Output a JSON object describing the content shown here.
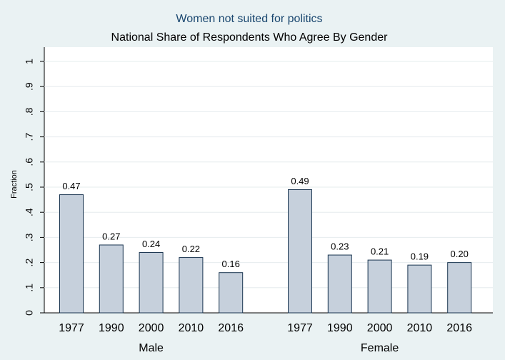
{
  "chart_data": {
    "type": "bar",
    "title": "Women not suited for politics",
    "subtitle": "National Share of Respondents Who Agree By Gender",
    "ylabel": "Fraction",
    "color": "#c6d0dc",
    "edgecolor": "#1a3550",
    "grid": true,
    "ylim": [
      0,
      1
    ],
    "yticks": [
      0,
      {
        "value": 0.1,
        "label": ".1"
      },
      {
        "value": 0.2,
        "label": ".2"
      },
      {
        "value": 0.3,
        "label": ".3"
      },
      {
        "value": 0.4,
        "label": ".4"
      },
      {
        "value": 0.5,
        "label": ".5"
      },
      {
        "value": 0.6,
        "label": ".6"
      },
      {
        "value": 0.7,
        "label": ".7"
      },
      {
        "value": 0.8,
        "label": ".8"
      },
      {
        "value": 0.9,
        "label": ".9"
      },
      1
    ],
    "groups": [
      {
        "name": "Male",
        "categories": [
          "1977",
          "1990",
          "2000",
          "2010",
          "2016"
        ],
        "values": [
          0.47,
          0.27,
          0.24,
          0.22,
          0.16
        ],
        "value_labels": [
          "0.47",
          "0.27",
          "0.24",
          "0.22",
          "0.16"
        ]
      },
      {
        "name": "Female",
        "categories": [
          "1977",
          "1990",
          "2000",
          "2010",
          "2016"
        ],
        "values": [
          0.49,
          0.23,
          0.21,
          0.19,
          0.2
        ],
        "value_labels": [
          "0.49",
          "0.23",
          "0.21",
          "0.19",
          "0.20"
        ]
      }
    ]
  }
}
